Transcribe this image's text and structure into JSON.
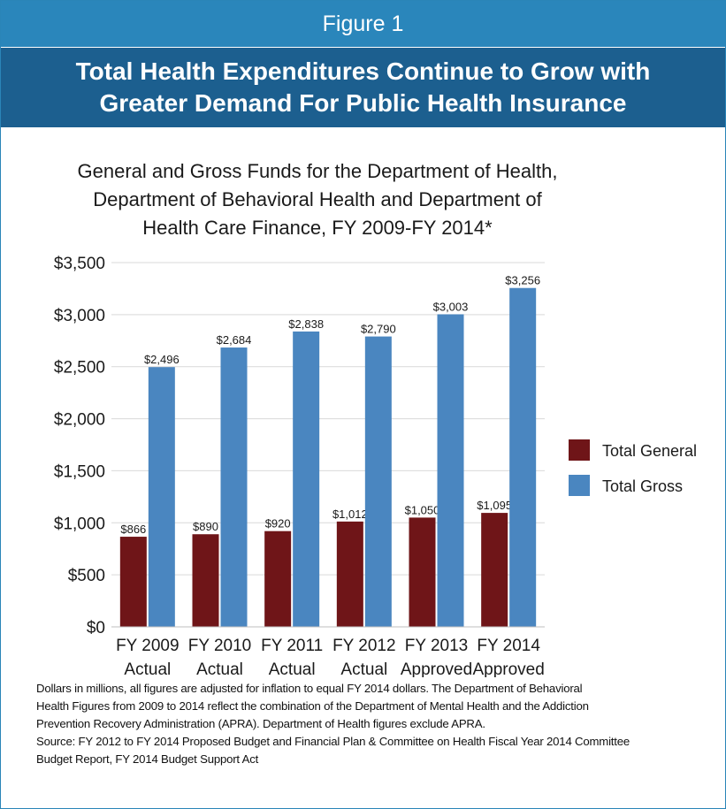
{
  "figure_label": "Figure 1",
  "headline": {
    "line1": "Total Health Expenditures Continue to Grow with",
    "line2": "Greater Demand For Public Health Insurance"
  },
  "colors": {
    "general": "#6f1518",
    "gross": "#4a86c0",
    "figure_bar": "#2a86bb",
    "headline_bar": "#1c5f8f",
    "border": "#2a85b8"
  },
  "chart_data": {
    "type": "bar",
    "title_lines": [
      "General and Gross Funds for the Department of Health,",
      "Department of Behavioral Health and Department of",
      "Health Care Finance, FY 2009-FY 2014*"
    ],
    "categories": [
      [
        "FY 2009",
        "Actual"
      ],
      [
        "FY 2010",
        "Actual"
      ],
      [
        "FY 2011",
        "Actual"
      ],
      [
        "FY 2012",
        "Actual"
      ],
      [
        "FY 2013",
        "Approved"
      ],
      [
        "FY 2014",
        "Approved"
      ]
    ],
    "series": [
      {
        "name": "Total General",
        "values": [
          866,
          890,
          920,
          1012,
          1050,
          1095
        ],
        "labels": [
          "$866",
          "$890",
          "$920",
          "$1,012",
          "$1,050",
          "$1,095"
        ]
      },
      {
        "name": "Total Gross",
        "values": [
          2496,
          2684,
          2838,
          2790,
          3003,
          3256
        ],
        "labels": [
          "$2,496",
          "$2,684",
          "$2,838",
          "$2,790",
          "$3,003",
          "$3,256"
        ]
      }
    ],
    "ylim": [
      0,
      3500
    ],
    "yticks": [
      0,
      500,
      1000,
      1500,
      2000,
      2500,
      3000,
      3500
    ],
    "ytick_labels": [
      "$0",
      "$500",
      "$1,000",
      "$1,500",
      "$2,000",
      "$2,500",
      "$3,000",
      "$3,500"
    ],
    "grid": true,
    "legend_position": "right"
  },
  "notes": {
    "line1": "Dollars in millions, all figures are adjusted for inflation to equal FY 2014 dollars. The Department of Behavioral",
    "line2": "Health Figures from 2009 to 2014 reflect the combination of the Department of Mental Health and the Addiction",
    "line3": "Prevention Recovery Administration (APRA).  Department of Health figures exclude APRA.",
    "line4": "Source: FY 2012 to FY 2014 Proposed Budget and Financial Plan & Committee on Health Fiscal Year 2014 Committee",
    "line5": "Budget Report, FY 2014 Budget Support Act"
  }
}
